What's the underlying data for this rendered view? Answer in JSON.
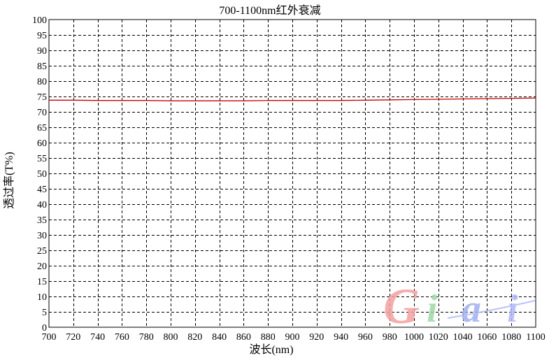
{
  "chart_data": {
    "type": "line",
    "title": "700-1100nm红外衰减",
    "xlabel": "波长(nm)",
    "ylabel": "透过率(T%)",
    "xlim": [
      700,
      1100
    ],
    "ylim": [
      0,
      100
    ],
    "x_ticks": [
      700,
      720,
      740,
      760,
      780,
      800,
      820,
      840,
      860,
      880,
      900,
      920,
      940,
      960,
      980,
      1000,
      1020,
      1040,
      1060,
      1080,
      1100
    ],
    "y_ticks": [
      0,
      5,
      10,
      15,
      20,
      25,
      30,
      35,
      40,
      45,
      50,
      55,
      60,
      65,
      70,
      75,
      80,
      85,
      90,
      95,
      100
    ],
    "grid": true,
    "grid_style": "dashed",
    "series": [
      {
        "color": "#cc0000",
        "x": [
          700,
          720,
          740,
          760,
          780,
          800,
          820,
          840,
          860,
          880,
          900,
          920,
          940,
          960,
          980,
          1000,
          1020,
          1040,
          1060,
          1080,
          1100
        ],
        "y": [
          73.8,
          73.8,
          73.7,
          73.7,
          73.7,
          73.6,
          73.6,
          73.6,
          73.6,
          73.7,
          73.7,
          73.7,
          73.7,
          73.8,
          73.9,
          74.0,
          74.1,
          74.2,
          74.3,
          74.4,
          74.5
        ]
      }
    ]
  },
  "watermark": {
    "text": "Giai",
    "colors": [
      "#f4a0a0",
      "#a0d8a8",
      "#a0b0f0",
      "#b0b8f8"
    ]
  }
}
